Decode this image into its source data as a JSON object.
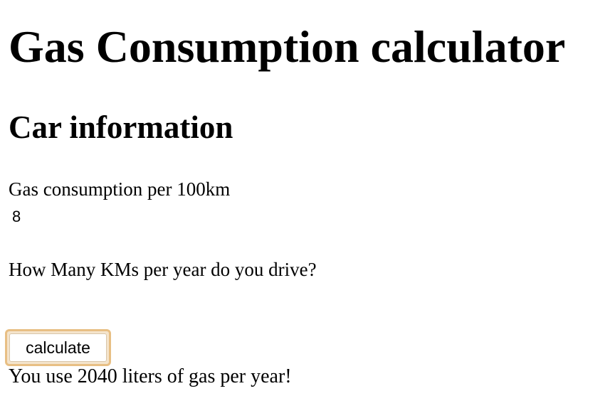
{
  "page": {
    "title": "Gas Consumption calculator",
    "section_title": "Car information"
  },
  "form": {
    "consumption_label": "Gas consumption per 100km",
    "consumption_value": "8",
    "km_label": "How Many KMs per year do you drive?",
    "km_value": "",
    "calculate_label": "calculate"
  },
  "result": {
    "text": "You use 2040 liters of gas per year!"
  },
  "colors": {
    "focus_ring": "#e8bf84",
    "text": "#000000",
    "background": "#ffffff"
  }
}
